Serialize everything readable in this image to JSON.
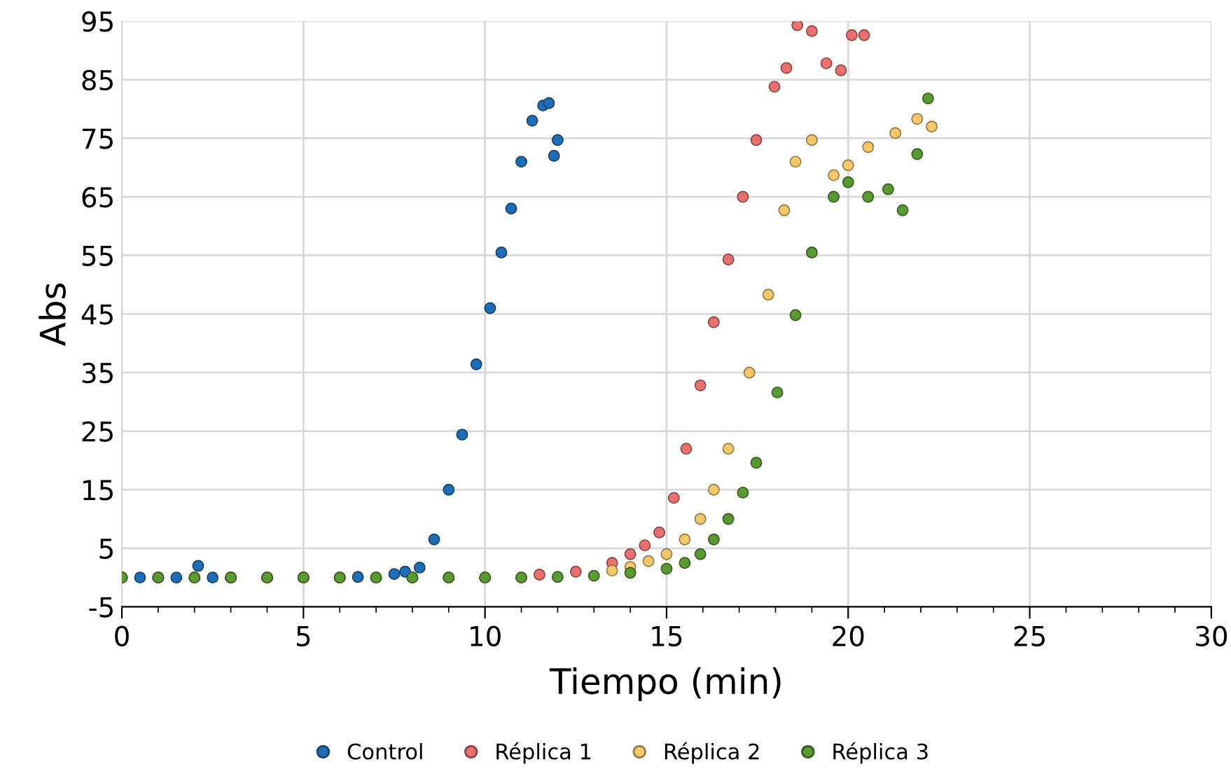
{
  "chart_data": {
    "type": "scatter",
    "xlabel": "Tiempo (min)",
    "ylabel": "Abs",
    "xlim": [
      0,
      30
    ],
    "ylim": [
      -5,
      95
    ],
    "xticks": [
      0,
      {
        "value": 1,
        "label": null
      },
      {
        "value": 2,
        "label": null
      },
      {
        "value": 3,
        "label": null
      },
      {
        "value": 4,
        "label": null
      },
      5,
      {
        "value": 6,
        "label": null
      },
      {
        "value": 7,
        "label": null
      },
      {
        "value": 8,
        "label": null
      },
      {
        "value": 9,
        "label": null
      },
      10,
      {
        "value": 11,
        "label": null
      },
      {
        "value": 12,
        "label": null
      },
      {
        "value": 13,
        "label": null
      },
      {
        "value": 14,
        "label": null
      },
      15,
      {
        "value": 16,
        "label": null
      },
      {
        "value": 17,
        "label": null
      },
      {
        "value": 18,
        "label": null
      },
      {
        "value": 19,
        "label": null
      },
      20,
      {
        "value": 21,
        "label": null
      },
      {
        "value": 22,
        "label": null
      },
      {
        "value": 23,
        "label": null
      },
      {
        "value": 24,
        "label": null
      },
      25,
      {
        "value": 26,
        "label": null
      },
      {
        "value": 27,
        "label": null
      },
      {
        "value": 28,
        "label": null
      },
      {
        "value": 29,
        "label": null
      },
      30
    ],
    "yticks": [
      -5,
      5,
      15,
      25,
      35,
      45,
      55,
      65,
      75,
      85,
      95
    ],
    "grid": true,
    "legend": "bottom",
    "marker": "circle",
    "series": [
      {
        "name": "Control",
        "color": "#1f6db5",
        "x": [
          0,
          0.5,
          1,
          1.5,
          2.1,
          2.5,
          3,
          4,
          5,
          6,
          6.5,
          7.5,
          7.8,
          8.2,
          8.6,
          9.0,
          9.37,
          9.76,
          10.14,
          10.45,
          10.72,
          11.0,
          11.3,
          11.6,
          11.76,
          11.9,
          12.0
        ],
        "values": [
          0,
          0,
          0,
          0,
          2,
          0,
          0,
          0,
          0,
          0,
          0.1,
          0.6,
          1,
          1.7,
          6.5,
          15,
          24.4,
          36.4,
          46,
          55.5,
          63,
          71,
          78,
          80.6,
          81,
          72,
          74.7
        ]
      },
      {
        "name": "Réplica 1",
        "color": "#e8716f",
        "x": [
          0,
          1,
          2,
          3,
          4,
          5,
          6,
          7,
          8,
          9,
          10,
          11.5,
          12.5,
          13.5,
          14,
          14.4,
          14.8,
          15.2,
          15.54,
          15.93,
          16.3,
          16.7,
          17.1,
          17.47,
          17.97,
          18.3,
          18.6,
          19.0,
          19.4,
          19.8,
          20.1,
          20.44
        ],
        "values": [
          0,
          0,
          0,
          0,
          0,
          0,
          0,
          0,
          0,
          0,
          0,
          0.5,
          1,
          2.5,
          4,
          5.5,
          7.7,
          13.6,
          22,
          32.8,
          43.6,
          54.3,
          65,
          74.7,
          83.8,
          87,
          94.3,
          93.3,
          87.8,
          86.6,
          92.6,
          92.6
        ]
      },
      {
        "name": "Réplica 2",
        "color": "#f5c96b",
        "x": [
          0,
          1,
          2,
          3,
          4,
          5,
          6,
          7,
          8,
          9,
          10,
          11,
          13.5,
          14,
          14.5,
          15,
          15.5,
          15.93,
          16.3,
          16.7,
          17.28,
          17.8,
          18.24,
          18.55,
          19.0,
          19.6,
          20.0,
          20.55,
          21.3,
          21.9,
          22.3
        ],
        "values": [
          0,
          0,
          0,
          0,
          0,
          0,
          0,
          0,
          0,
          0,
          0,
          0,
          1.2,
          1.8,
          2.8,
          4,
          6.5,
          10,
          15,
          22,
          35,
          48.3,
          62.7,
          71,
          74.7,
          68.7,
          70.4,
          73.5,
          75.9,
          78.3,
          77
        ]
      },
      {
        "name": "Réplica 3",
        "color": "#5a9a32",
        "x": [
          0,
          1,
          2,
          3,
          4,
          5,
          6,
          7,
          8,
          9,
          10,
          11,
          12,
          13,
          14,
          15,
          15.5,
          15.93,
          16.3,
          16.7,
          17.1,
          17.47,
          18.05,
          18.55,
          19.0,
          19.6,
          20.0,
          20.55,
          21.1,
          21.5,
          21.9,
          22.2
        ],
        "values": [
          0,
          0,
          0,
          0,
          0,
          0,
          0,
          0,
          0,
          0,
          0,
          0,
          0.1,
          0.3,
          0.8,
          1.5,
          2.5,
          4,
          6.5,
          10,
          14.5,
          19.6,
          31.6,
          44.8,
          55.5,
          65,
          67.5,
          65,
          66.3,
          62.7,
          72.3,
          81.8
        ]
      }
    ]
  }
}
